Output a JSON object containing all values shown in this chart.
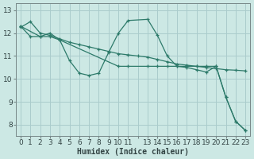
{
  "background_color": "#cce8e4",
  "grid_color": "#aacccc",
  "line_color": "#2d7a6a",
  "xlabel": "Humidex (Indice chaleur)",
  "ylim": [
    7.5,
    13.3
  ],
  "xlim": [
    -0.5,
    23.5
  ],
  "yticks": [
    8,
    9,
    10,
    11,
    12,
    13
  ],
  "xtick_positions": [
    0,
    1,
    2,
    3,
    4,
    5,
    6,
    7,
    8,
    9,
    10,
    11,
    12,
    13,
    14,
    15,
    16,
    17,
    18,
    19,
    20,
    21,
    22,
    23
  ],
  "xtick_labels": [
    "0",
    "1",
    "2",
    "3",
    "4",
    "5",
    "6",
    "7",
    "8",
    "9",
    "10",
    "11",
    "",
    "13",
    "14",
    "15",
    "16",
    "17",
    "18",
    "19",
    "20",
    "21",
    "22",
    "23"
  ],
  "series1_x": [
    0,
    1,
    2,
    3,
    4,
    5,
    6,
    7,
    8,
    9,
    10,
    11,
    12,
    13,
    14,
    15,
    16,
    17,
    18,
    19,
    20,
    21,
    22,
    23
  ],
  "series1_y": [
    12.25,
    12.5,
    12.0,
    11.9,
    11.75,
    11.6,
    11.5,
    11.4,
    11.3,
    11.2,
    11.1,
    11.05,
    11.0,
    10.95,
    10.85,
    10.75,
    10.65,
    10.6,
    10.55,
    10.5,
    10.45,
    10.4,
    10.38,
    10.35
  ],
  "series2_x": [
    0,
    1,
    2,
    3,
    4,
    5,
    6,
    7,
    8,
    9,
    10,
    11,
    13,
    14,
    15,
    16,
    17,
    18,
    19,
    20,
    21,
    22,
    23
  ],
  "series2_y": [
    12.3,
    11.85,
    11.85,
    12.0,
    11.7,
    10.8,
    10.25,
    10.15,
    10.25,
    11.15,
    12.0,
    12.55,
    12.6,
    11.9,
    11.0,
    10.55,
    10.5,
    10.4,
    10.3,
    10.55,
    9.2,
    8.15,
    7.75
  ],
  "series3_x": [
    0,
    2,
    3,
    4,
    10,
    11,
    13,
    14,
    15,
    16,
    17,
    18,
    19,
    20,
    21,
    22,
    23
  ],
  "series3_y": [
    12.3,
    11.85,
    11.85,
    11.7,
    10.55,
    10.55,
    10.55,
    10.55,
    10.55,
    10.55,
    10.55,
    10.55,
    10.55,
    10.55,
    9.2,
    8.15,
    7.75
  ],
  "fontsize_xlabel": 7,
  "fontsize_tick": 6.5
}
